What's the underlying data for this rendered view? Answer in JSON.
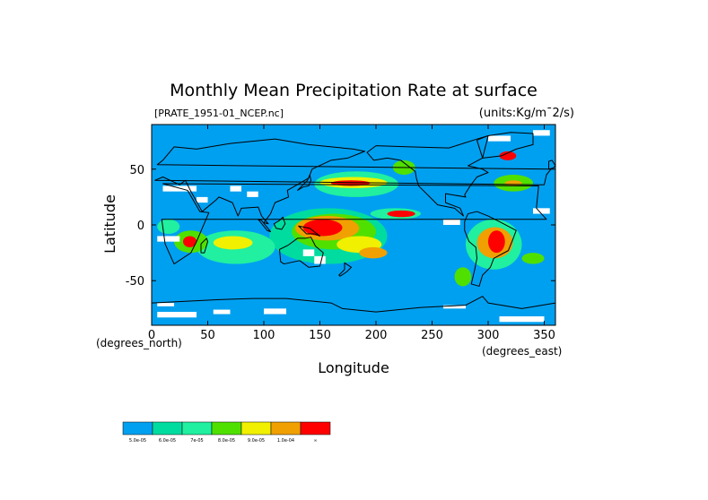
{
  "chart_data": {
    "type": "heatmap",
    "title": "Monthly Mean Precipitation Rate at surface",
    "subtitle_left": "[PRATE_1951-01_NCEP.nc]",
    "subtitle_right": "(units:Kg/m^2/s)",
    "subtitle_right_display": "(units:Kg/m¯2/s)",
    "xlabel": "Longitude",
    "ylabel": "Latitude",
    "x_unit_note": "(degrees_east)",
    "y_unit_note": "(degrees_north)",
    "xlim": [
      0,
      360
    ],
    "ylim": [
      -90,
      90
    ],
    "x_ticks": [
      0,
      50,
      100,
      150,
      200,
      250,
      300,
      350
    ],
    "y_ticks": [
      -50,
      0,
      50
    ],
    "background_level": 0,
    "missing_color": "#ffffff",
    "legend": {
      "colors": [
        "#00a0f0",
        "#00dca0",
        "#20f0a0",
        "#50e000",
        "#f0f000",
        "#f0a000",
        "#ff0000"
      ],
      "labels": [
        "5.0e-05",
        "6.0e-05",
        "7e-05",
        "8.0e-05",
        "9.0e-05",
        "1.0e-04",
        "∞"
      ]
    },
    "regions": [
      {
        "lon": [
          105,
          210
        ],
        "lat": [
          -35,
          15
        ],
        "level": 1
      },
      {
        "lon": [
          125,
          200
        ],
        "lat": [
          -22,
          10
        ],
        "level": 3
      },
      {
        "lon": [
          128,
          185
        ],
        "lat": [
          -14,
          8
        ],
        "level": 5
      },
      {
        "lon": [
          135,
          170
        ],
        "lat": [
          -10,
          5
        ],
        "level": 6
      },
      {
        "lon": [
          165,
          205
        ],
        "lat": [
          -25,
          -10
        ],
        "level": 4
      },
      {
        "lon": [
          185,
          210
        ],
        "lat": [
          -30,
          -20
        ],
        "level": 5
      },
      {
        "lon": [
          145,
          220
        ],
        "lat": [
          25,
          48
        ],
        "level": 2
      },
      {
        "lon": [
          150,
          210
        ],
        "lat": [
          33,
          43
        ],
        "level": 4
      },
      {
        "lon": [
          160,
          195
        ],
        "lat": [
          35,
          40
        ],
        "level": 6
      },
      {
        "lon": [
          195,
          240
        ],
        "lat": [
          5,
          15
        ],
        "level": 2
      },
      {
        "lon": [
          210,
          235
        ],
        "lat": [
          7,
          13
        ],
        "level": 6
      },
      {
        "lon": [
          280,
          330
        ],
        "lat": [
          -40,
          5
        ],
        "level": 2
      },
      {
        "lon": [
          290,
          322
        ],
        "lat": [
          -30,
          -2
        ],
        "level": 5
      },
      {
        "lon": [
          300,
          315
        ],
        "lat": [
          -25,
          -5
        ],
        "level": 6
      },
      {
        "lon": [
          40,
          110
        ],
        "lat": [
          -35,
          -5
        ],
        "level": 2
      },
      {
        "lon": [
          55,
          90
        ],
        "lat": [
          -22,
          -10
        ],
        "level": 4
      },
      {
        "lon": [
          20,
          50
        ],
        "lat": [
          -25,
          -5
        ],
        "level": 3
      },
      {
        "lon": [
          28,
          40
        ],
        "lat": [
          -20,
          -10
        ],
        "level": 6
      },
      {
        "lon": [
          5,
          25
        ],
        "lat": [
          -8,
          5
        ],
        "level": 2
      },
      {
        "lon": [
          305,
          340
        ],
        "lat": [
          30,
          45
        ],
        "level": 3
      },
      {
        "lon": [
          315,
          330
        ],
        "lat": [
          35,
          40
        ],
        "level": 5
      },
      {
        "lon": [
          310,
          325
        ],
        "lat": [
          58,
          66
        ],
        "level": 6
      },
      {
        "lon": [
          215,
          235
        ],
        "lat": [
          45,
          58
        ],
        "level": 3
      },
      {
        "lon": [
          330,
          350
        ],
        "lat": [
          -35,
          -25
        ],
        "level": 3
      },
      {
        "lon": [
          270,
          285
        ],
        "lat": [
          -55,
          -38
        ],
        "level": 3
      }
    ],
    "missing_patches": [
      {
        "lon": [
          5,
          40
        ],
        "lat": [
          -83,
          -78
        ]
      },
      {
        "lon": [
          55,
          70
        ],
        "lat": [
          -80,
          -76
        ]
      },
      {
        "lon": [
          100,
          120
        ],
        "lat": [
          -80,
          -75
        ]
      },
      {
        "lon": [
          310,
          350
        ],
        "lat": [
          -87,
          -82
        ]
      },
      {
        "lon": [
          260,
          280
        ],
        "lat": [
          -75,
          -72
        ]
      },
      {
        "lon": [
          5,
          20
        ],
        "lat": [
          -73,
          -70
        ]
      },
      {
        "lon": [
          10,
          40
        ],
        "lat": [
          30,
          35
        ]
      },
      {
        "lon": [
          70,
          80
        ],
        "lat": [
          30,
          35
        ]
      },
      {
        "lon": [
          85,
          95
        ],
        "lat": [
          25,
          30
        ]
      },
      {
        "lon": [
          135,
          145
        ],
        "lat": [
          -28,
          -22
        ]
      },
      {
        "lon": [
          145,
          155
        ],
        "lat": [
          -35,
          -28
        ]
      },
      {
        "lon": [
          40,
          50
        ],
        "lat": [
          20,
          25
        ]
      },
      {
        "lon": [
          5,
          25
        ],
        "lat": [
          -15,
          -10
        ]
      },
      {
        "lon": [
          340,
          355
        ],
        "lat": [
          10,
          15
        ]
      },
      {
        "lon": [
          340,
          355
        ],
        "lat": [
          80,
          85
        ]
      },
      {
        "lon": [
          300,
          320
        ],
        "lat": [
          75,
          80
        ]
      },
      {
        "lon": [
          260,
          275
        ],
        "lat": [
          0,
          5
        ]
      }
    ],
    "continents": [
      {
        "name": "africa",
        "pts": [
          [
            345,
            35
          ],
          [
            10,
            37
          ],
          [
            32,
            31
          ],
          [
            43,
            12
          ],
          [
            51,
            11
          ],
          [
            40,
            -15
          ],
          [
            35,
            -25
          ],
          [
            20,
            -35
          ],
          [
            12,
            -17
          ],
          [
            9,
            5
          ],
          [
            352,
            5
          ],
          [
            343,
            15
          ]
        ]
      },
      {
        "name": "eurasia",
        "pts": [
          [
            350,
            36
          ],
          [
            352,
            45
          ],
          [
            356,
            50
          ],
          [
            5,
            54
          ],
          [
            10,
            58
          ],
          [
            20,
            70
          ],
          [
            40,
            68
          ],
          [
            70,
            73
          ],
          [
            110,
            77
          ],
          [
            140,
            72
          ],
          [
            180,
            68
          ],
          [
            190,
            66
          ],
          [
            175,
            60
          ],
          [
            160,
            58
          ],
          [
            143,
            50
          ],
          [
            140,
            42
          ],
          [
            128,
            35
          ],
          [
            121,
            31
          ],
          [
            122,
            25
          ],
          [
            110,
            20
          ],
          [
            106,
            10
          ],
          [
            100,
            2
          ],
          [
            104,
            1
          ],
          [
            98,
            8
          ],
          [
            95,
            16
          ],
          [
            80,
            15
          ],
          [
            77,
            8
          ],
          [
            72,
            20
          ],
          [
            60,
            25
          ],
          [
            57,
            22
          ],
          [
            45,
            12
          ],
          [
            35,
            30
          ],
          [
            30,
            40
          ],
          [
            25,
            36
          ],
          [
            10,
            43
          ],
          [
            3,
            40
          ]
        ]
      },
      {
        "name": "australia",
        "pts": [
          [
            114,
            -22
          ],
          [
            122,
            -18
          ],
          [
            130,
            -12
          ],
          [
            137,
            -12
          ],
          [
            142,
            -11
          ],
          [
            146,
            -19
          ],
          [
            153,
            -25
          ],
          [
            150,
            -37
          ],
          [
            140,
            -38
          ],
          [
            132,
            -32
          ],
          [
            118,
            -35
          ],
          [
            115,
            -33
          ]
        ]
      },
      {
        "name": "north_america",
        "pts": [
          [
            192,
            65
          ],
          [
            200,
            71
          ],
          [
            230,
            70
          ],
          [
            265,
            69
          ],
          [
            290,
            77
          ],
          [
            300,
            80
          ],
          [
            295,
            60
          ],
          [
            282,
            53
          ],
          [
            295,
            50
          ],
          [
            300,
            47
          ],
          [
            290,
            43
          ],
          [
            284,
            35
          ],
          [
            279,
            27
          ],
          [
            280,
            25
          ],
          [
            262,
            28
          ],
          [
            262,
            20
          ],
          [
            275,
            15
          ],
          [
            278,
            8
          ],
          [
            270,
            15
          ],
          [
            255,
            18
          ],
          [
            248,
            25
          ],
          [
            238,
            35
          ],
          [
            236,
            42
          ],
          [
            235,
            48
          ],
          [
            222,
            58
          ],
          [
            210,
            60
          ],
          [
            198,
            58
          ]
        ]
      },
      {
        "name": "south_america",
        "pts": [
          [
            282,
            10
          ],
          [
            290,
            12
          ],
          [
            300,
            8
          ],
          [
            310,
            3
          ],
          [
            325,
            -5
          ],
          [
            322,
            -13
          ],
          [
            318,
            -23
          ],
          [
            305,
            -30
          ],
          [
            302,
            -38
          ],
          [
            295,
            -45
          ],
          [
            292,
            -55
          ],
          [
            285,
            -53
          ],
          [
            288,
            -40
          ],
          [
            290,
            -30
          ],
          [
            289,
            -20
          ],
          [
            283,
            -15
          ],
          [
            279,
            -5
          ],
          [
            279,
            3
          ]
        ]
      },
      {
        "name": "greenland",
        "pts": [
          [
            295,
            60
          ],
          [
            312,
            62
          ],
          [
            325,
            68
          ],
          [
            340,
            72
          ],
          [
            340,
            82
          ],
          [
            320,
            83
          ],
          [
            300,
            80
          ],
          [
            290,
            76
          ]
        ]
      },
      {
        "name": "antarctica",
        "pts": [
          [
            0,
            -70
          ],
          [
            60,
            -67
          ],
          [
            90,
            -66
          ],
          [
            120,
            -66
          ],
          [
            160,
            -70
          ],
          [
            170,
            -75
          ],
          [
            200,
            -78
          ],
          [
            240,
            -74
          ],
          [
            280,
            -72
          ],
          [
            295,
            -64
          ],
          [
            300,
            -70
          ],
          [
            330,
            -75
          ],
          [
            360,
            -70
          ],
          [
            360,
            -90
          ],
          [
            0,
            -90
          ]
        ]
      },
      {
        "name": "madagascar",
        "pts": [
          [
            44,
            -25
          ],
          [
            47,
            -25
          ],
          [
            50,
            -15
          ],
          [
            49,
            -12
          ],
          [
            44,
            -17
          ]
        ]
      },
      {
        "name": "japan",
        "pts": [
          [
            130,
            31
          ],
          [
            135,
            34
          ],
          [
            140,
            35
          ],
          [
            142,
            40
          ],
          [
            141,
            45
          ],
          [
            139,
            40
          ],
          [
            134,
            35
          ]
        ]
      },
      {
        "name": "new_zealand",
        "pts": [
          [
            172,
            -34
          ],
          [
            178,
            -38
          ],
          [
            174,
            -42
          ],
          [
            168,
            -46
          ],
          [
            167,
            -45
          ],
          [
            172,
            -40
          ]
        ]
      },
      {
        "name": "borneo",
        "pts": [
          [
            109,
            1
          ],
          [
            111,
            -3
          ],
          [
            116,
            -4
          ],
          [
            119,
            1
          ],
          [
            117,
            7
          ],
          [
            114,
            4
          ]
        ]
      },
      {
        "name": "sumatra",
        "pts": [
          [
            95,
            5
          ],
          [
            98,
            4
          ],
          [
            106,
            -6
          ],
          [
            103,
            -5
          ]
        ]
      },
      {
        "name": "new_guinea",
        "pts": [
          [
            131,
            -1
          ],
          [
            141,
            -3
          ],
          [
            150,
            -10
          ],
          [
            145,
            -8
          ],
          [
            138,
            -8
          ]
        ]
      },
      {
        "name": "uk",
        "pts": [
          [
            354,
            50
          ],
          [
            358,
            51
          ],
          [
            360,
            53
          ],
          [
            357,
            58
          ],
          [
            354,
            57
          ]
        ]
      }
    ]
  }
}
